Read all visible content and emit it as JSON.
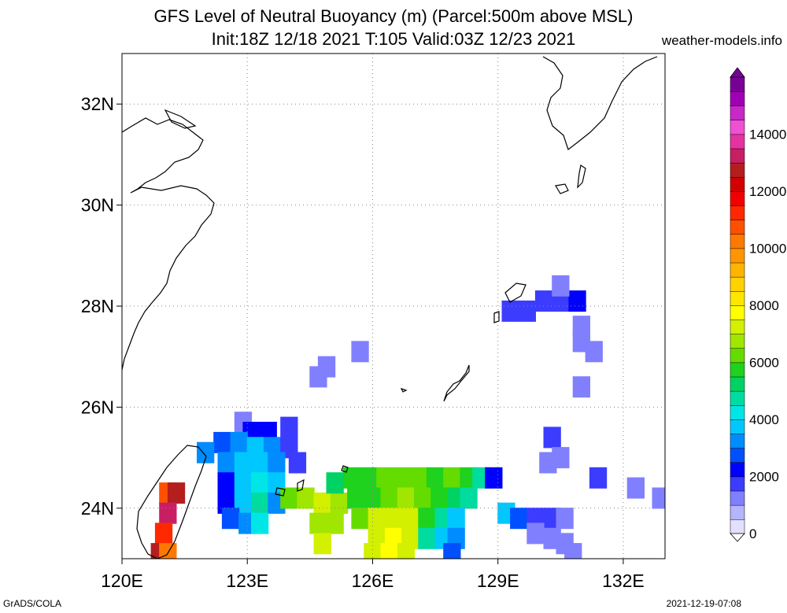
{
  "titles": {
    "line1": "GFS Level of Neutral Buoyancy (m) (Parcel:500m above MSL)",
    "line2": "Init:18Z 12/18 2021 T:105 Valid:03Z 12/23 2021",
    "site": "weather-models.info"
  },
  "footer": {
    "left": "GrADS/COLA",
    "right": "2021-12-19-07:08"
  },
  "map": {
    "lon_range": [
      120,
      133
    ],
    "lat_range": [
      23,
      33
    ],
    "x_ticks": [
      {
        "value": 120,
        "label": "120E"
      },
      {
        "value": 123,
        "label": "123E"
      },
      {
        "value": 126,
        "label": "126E"
      },
      {
        "value": 129,
        "label": "129E"
      },
      {
        "value": 132,
        "label": "132E"
      }
    ],
    "y_ticks": [
      {
        "value": 24,
        "label": "24N"
      },
      {
        "value": 26,
        "label": "26N"
      },
      {
        "value": 28,
        "label": "28N"
      },
      {
        "value": 30,
        "label": "30N"
      },
      {
        "value": 32,
        "label": "32N"
      }
    ],
    "grid": "dotted"
  },
  "colorbar": {
    "labels": [
      "0",
      "2000",
      "4000",
      "6000",
      "8000",
      "10000",
      "12000",
      "14000"
    ],
    "colors": [
      "#e1e1ff",
      "#b4b4ff",
      "#8080ff",
      "#3c3cff",
      "#0000ff",
      "#0050ff",
      "#008cff",
      "#00c8ff",
      "#00e6e6",
      "#00dca0",
      "#00d264",
      "#1ed21e",
      "#64dc00",
      "#a0e600",
      "#d2f000",
      "#ffff00",
      "#ffe600",
      "#ffd200",
      "#ffb400",
      "#ff9600",
      "#ff7800",
      "#ff5000",
      "#ff2800",
      "#f00000",
      "#d20000",
      "#b41e1e",
      "#c81e64",
      "#e632a0",
      "#f050d2",
      "#c828c8",
      "#a000b4",
      "#780096"
    ]
  },
  "cells": [
    {
      "lon": 122.9,
      "lat": 25.7,
      "v": 1200
    },
    {
      "lon": 123.1,
      "lat": 25.5,
      "v": 2200
    },
    {
      "lon": 123.5,
      "lat": 25.5,
      "v": 2000
    },
    {
      "lon": 124.0,
      "lat": 25.6,
      "v": 1500
    },
    {
      "lon": 122.4,
      "lat": 25.3,
      "v": 2800
    },
    {
      "lon": 122.8,
      "lat": 25.3,
      "v": 3200
    },
    {
      "lon": 123.2,
      "lat": 25.2,
      "v": 3500
    },
    {
      "lon": 123.6,
      "lat": 25.2,
      "v": 3200
    },
    {
      "lon": 124.0,
      "lat": 25.2,
      "v": 1800
    },
    {
      "lon": 122.0,
      "lat": 25.1,
      "v": 3400
    },
    {
      "lon": 122.5,
      "lat": 24.9,
      "v": 3000
    },
    {
      "lon": 122.9,
      "lat": 24.9,
      "v": 3600
    },
    {
      "lon": 123.3,
      "lat": 24.9,
      "v": 3900
    },
    {
      "lon": 123.7,
      "lat": 24.9,
      "v": 3000
    },
    {
      "lon": 124.2,
      "lat": 24.9,
      "v": 1800
    },
    {
      "lon": 122.5,
      "lat": 24.5,
      "v": 2200
    },
    {
      "lon": 122.9,
      "lat": 24.5,
      "v": 3600
    },
    {
      "lon": 123.3,
      "lat": 24.5,
      "v": 4400
    },
    {
      "lon": 123.7,
      "lat": 24.5,
      "v": 3500
    },
    {
      "lon": 122.5,
      "lat": 24.1,
      "v": 2000
    },
    {
      "lon": 122.9,
      "lat": 24.1,
      "v": 3800
    },
    {
      "lon": 123.3,
      "lat": 24.1,
      "v": 4800
    },
    {
      "lon": 123.7,
      "lat": 24.1,
      "v": 3200
    },
    {
      "lon": 122.6,
      "lat": 23.8,
      "v": 2600
    },
    {
      "lon": 123.0,
      "lat": 23.7,
      "v": 3400
    },
    {
      "lon": 123.3,
      "lat": 23.7,
      "v": 4100
    },
    {
      "lon": 124.0,
      "lat": 24.2,
      "v": 6200
    },
    {
      "lon": 124.4,
      "lat": 24.2,
      "v": 6500
    },
    {
      "lon": 124.8,
      "lat": 24.1,
      "v": 7000
    },
    {
      "lon": 125.2,
      "lat": 24.1,
      "v": 6800
    },
    {
      "lon": 125.6,
      "lat": 24.2,
      "v": 5900
    },
    {
      "lon": 124.7,
      "lat": 23.7,
      "v": 6800
    },
    {
      "lon": 125.1,
      "lat": 23.7,
      "v": 6600
    },
    {
      "lon": 124.8,
      "lat": 23.3,
      "v": 7000
    },
    {
      "lon": 125.1,
      "lat": 24.5,
      "v": 5200
    },
    {
      "lon": 125.5,
      "lat": 24.6,
      "v": 5600
    },
    {
      "lon": 125.9,
      "lat": 24.6,
      "v": 5800
    },
    {
      "lon": 126.3,
      "lat": 24.6,
      "v": 6000
    },
    {
      "lon": 126.7,
      "lat": 24.6,
      "v": 6300
    },
    {
      "lon": 127.1,
      "lat": 24.6,
      "v": 6100
    },
    {
      "lon": 127.5,
      "lat": 24.6,
      "v": 5900
    },
    {
      "lon": 127.9,
      "lat": 24.6,
      "v": 6200
    },
    {
      "lon": 128.3,
      "lat": 24.6,
      "v": 5900
    },
    {
      "lon": 128.6,
      "lat": 24.6,
      "v": 4600
    },
    {
      "lon": 128.9,
      "lat": 24.6,
      "v": 2400
    },
    {
      "lon": 126.0,
      "lat": 24.2,
      "v": 5800
    },
    {
      "lon": 126.4,
      "lat": 24.2,
      "v": 6400
    },
    {
      "lon": 126.8,
      "lat": 24.2,
      "v": 6900
    },
    {
      "lon": 127.2,
      "lat": 24.2,
      "v": 6300
    },
    {
      "lon": 127.6,
      "lat": 24.2,
      "v": 5800
    },
    {
      "lon": 128.0,
      "lat": 24.2,
      "v": 5300
    },
    {
      "lon": 128.3,
      "lat": 24.2,
      "v": 4600
    },
    {
      "lon": 125.7,
      "lat": 23.8,
      "v": 6000
    },
    {
      "lon": 126.1,
      "lat": 23.8,
      "v": 7000
    },
    {
      "lon": 126.5,
      "lat": 23.8,
      "v": 7400
    },
    {
      "lon": 126.9,
      "lat": 23.8,
      "v": 7000
    },
    {
      "lon": 127.3,
      "lat": 23.8,
      "v": 5800
    },
    {
      "lon": 127.7,
      "lat": 23.8,
      "v": 4700
    },
    {
      "lon": 128.0,
      "lat": 23.8,
      "v": 3900
    },
    {
      "lon": 126.1,
      "lat": 23.4,
      "v": 7300
    },
    {
      "lon": 126.5,
      "lat": 23.4,
      "v": 7600
    },
    {
      "lon": 126.9,
      "lat": 23.4,
      "v": 7000
    },
    {
      "lon": 127.3,
      "lat": 23.4,
      "v": 4800
    },
    {
      "lon": 127.7,
      "lat": 23.4,
      "v": 3700
    },
    {
      "lon": 128.0,
      "lat": 23.4,
      "v": 3000
    },
    {
      "lon": 126.0,
      "lat": 23.1,
      "v": 7200
    },
    {
      "lon": 126.4,
      "lat": 23.1,
      "v": 7600
    },
    {
      "lon": 126.8,
      "lat": 23.1,
      "v": 7400
    },
    {
      "lon": 127.9,
      "lat": 23.1,
      "v": 2900
    },
    {
      "lon": 121.1,
      "lat": 24.3,
      "v": 10800
    },
    {
      "lon": 121.3,
      "lat": 24.3,
      "v": 12800
    },
    {
      "lon": 121.1,
      "lat": 23.9,
      "v": 13000
    },
    {
      "lon": 121.0,
      "lat": 23.5,
      "v": 11000
    },
    {
      "lon": 120.9,
      "lat": 23.1,
      "v": 12600
    },
    {
      "lon": 121.1,
      "lat": 23.1,
      "v": 10200
    },
    {
      "lon": 124.9,
      "lat": 26.8,
      "v": 1200
    },
    {
      "lon": 124.7,
      "lat": 26.6,
      "v": 1400
    },
    {
      "lon": 125.7,
      "lat": 27.1,
      "v": 1100
    },
    {
      "lon": 129.3,
      "lat": 27.9,
      "v": 1700
    },
    {
      "lon": 129.7,
      "lat": 27.9,
      "v": 1600
    },
    {
      "lon": 130.1,
      "lat": 28.1,
      "v": 1500
    },
    {
      "lon": 130.5,
      "lat": 28.1,
      "v": 1900
    },
    {
      "lon": 130.9,
      "lat": 28.1,
      "v": 2100
    },
    {
      "lon": 130.5,
      "lat": 28.4,
      "v": 1200
    },
    {
      "lon": 131.0,
      "lat": 27.6,
      "v": 1300
    },
    {
      "lon": 131.0,
      "lat": 27.3,
      "v": 1100
    },
    {
      "lon": 131.3,
      "lat": 27.1,
      "v": 1200
    },
    {
      "lon": 131.0,
      "lat": 26.4,
      "v": 1100
    },
    {
      "lon": 130.3,
      "lat": 25.4,
      "v": 1500
    },
    {
      "lon": 130.5,
      "lat": 25.0,
      "v": 1300
    },
    {
      "lon": 130.2,
      "lat": 24.9,
      "v": 1100
    },
    {
      "lon": 131.4,
      "lat": 24.6,
      "v": 1700
    },
    {
      "lon": 132.3,
      "lat": 24.4,
      "v": 1300
    },
    {
      "lon": 132.9,
      "lat": 24.2,
      "v": 1200
    },
    {
      "lon": 129.2,
      "lat": 23.9,
      "v": 3500
    },
    {
      "lon": 129.5,
      "lat": 23.8,
      "v": 2600
    },
    {
      "lon": 129.9,
      "lat": 23.8,
      "v": 1800
    },
    {
      "lon": 130.3,
      "lat": 23.8,
      "v": 1500
    },
    {
      "lon": 130.6,
      "lat": 23.8,
      "v": 1100
    },
    {
      "lon": 129.9,
      "lat": 23.5,
      "v": 1400
    },
    {
      "lon": 130.3,
      "lat": 23.4,
      "v": 1200
    },
    {
      "lon": 130.6,
      "lat": 23.3,
      "v": 1000
    },
    {
      "lon": 130.8,
      "lat": 23.1,
      "v": 1100
    }
  ]
}
